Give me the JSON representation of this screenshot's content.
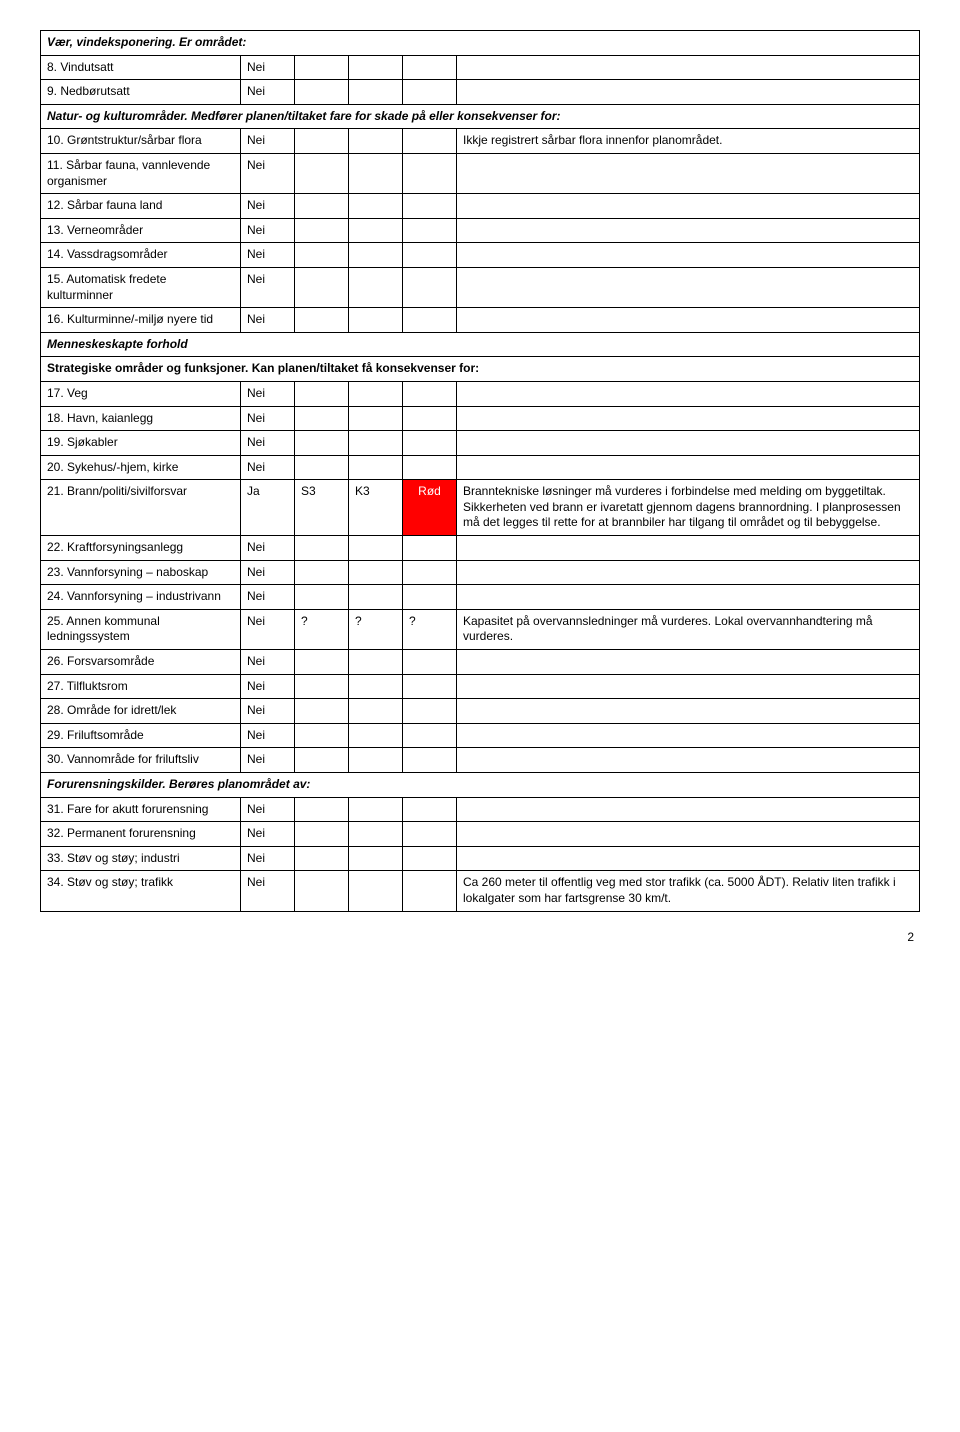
{
  "colors": {
    "red_bg": "#ff0000",
    "red_text": "#ffffff",
    "border": "#000000",
    "background": "#ffffff",
    "text": "#000000"
  },
  "font": {
    "family": "Arial",
    "size_pt": 9
  },
  "section1": {
    "header": "Vær, vindeksponering. Er området:",
    "rows": [
      {
        "label": "8.   Vindutsatt",
        "c2": "Nei"
      },
      {
        "label": "9.   Nedbørutsatt",
        "c2": "Nei"
      }
    ]
  },
  "section2": {
    "header": "Natur- og kulturområder. Medfører planen/tiltaket fare for skade på eller konsekvenser for:",
    "rows": [
      {
        "label": "10. Grøntstruktur/sårbar flora",
        "c2": "Nei",
        "c6": "Ikkje registrert sårbar flora innenfor planområdet."
      },
      {
        "label": "11. Sårbar fauna, vannlevende organismer",
        "c2": "Nei"
      },
      {
        "label": "12. Sårbar fauna land",
        "c2": "Nei"
      },
      {
        "label": "13. Verneområder",
        "c2": "Nei"
      },
      {
        "label": "14. Vassdragsområder",
        "c2": "Nei"
      },
      {
        "label": "15. Automatisk fredete kulturminner",
        "c2": "Nei"
      },
      {
        "label": "16. Kulturminne/-miljø nyere tid",
        "c2": "Nei"
      }
    ]
  },
  "section3": {
    "header": "Menneskeskapte forhold",
    "subheader": "Strategiske områder og funksjoner. Kan planen/tiltaket få konsekvenser for:",
    "rows": [
      {
        "label": "17. Veg",
        "c2": "Nei"
      },
      {
        "label": "18. Havn, kaianlegg",
        "c2": "Nei"
      },
      {
        "label": "19. Sjøkabler",
        "c2": "Nei"
      },
      {
        "label": "20. Sykehus/-hjem, kirke",
        "c2": "Nei"
      },
      {
        "label": "21. Brann/politi/sivilforsvar",
        "c2": "Ja",
        "c3": "S3",
        "c4": "K3",
        "c5": "Rød",
        "c5_red": true,
        "c6": "Branntekniske løsninger må vurderes i forbindelse med melding om byggetiltak. Sikkerheten ved brann er ivaretatt gjennom dagens brannordning. I planprosessen må det legges til rette for at brannbiler har tilgang til området og til bebyggelse."
      },
      {
        "label": "22. Kraftforsyningsanlegg",
        "c2": "Nei"
      },
      {
        "label": "23. Vannforsyning – naboskap",
        "c2": "Nei"
      },
      {
        "label": "24. Vannforsyning – industrivann",
        "c2": "Nei"
      },
      {
        "label": "25. Annen kommunal ledningssystem",
        "c2": "Nei",
        "c3": "?",
        "c4": "?",
        "c5": "?",
        "c6": "Kapasitet på overvannsledninger må vurderes. Lokal overvannhandtering må vurderes."
      },
      {
        "label": "26. Forsvarsområde",
        "c2": "Nei"
      },
      {
        "label": "27. Tilfluktsrom",
        "c2": "Nei"
      },
      {
        "label": "28. Område for idrett/lek",
        "c2": "Nei"
      },
      {
        "label": "29. Friluftsområde",
        "c2": "Nei"
      },
      {
        "label": "30. Vannområde for friluftsliv",
        "c2": "Nei"
      }
    ]
  },
  "section4": {
    "header": "Forurensningskilder. Berøres planområdet av:",
    "rows": [
      {
        "label": "31. Fare for akutt forurensning",
        "c2": "Nei"
      },
      {
        "label": "32. Permanent forurensning",
        "c2": "Nei"
      },
      {
        "label": "33. Støv og støy; industri",
        "c2": "Nei"
      },
      {
        "label": "34. Støv og støy; trafikk",
        "c2": "Nei",
        "c6": "Ca 260 meter til offentlig veg med stor trafikk (ca. 5000 ÅDT). Relativ liten trafikk i lokalgater som har fartsgrense 30 km/t."
      }
    ]
  },
  "page_number": "2"
}
